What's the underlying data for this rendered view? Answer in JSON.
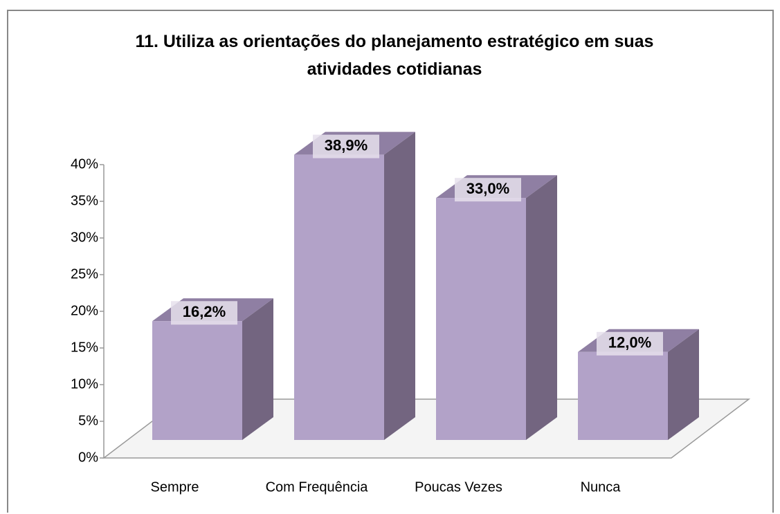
{
  "chart_data": {
    "type": "bar3d",
    "title": "11. Utiliza as orientações do planejamento estratégico em suas atividades cotidianas",
    "categories": [
      "Sempre",
      "Com Frequência",
      "Poucas Vezes",
      "Nunca"
    ],
    "values": [
      16.2,
      38.9,
      33.0,
      12.0
    ],
    "value_labels": [
      "16,2%",
      "38,9%",
      "33,0%",
      "12,0%"
    ],
    "color": "#b2a2c8",
    "ylim": [
      0,
      40
    ],
    "yticks": [
      {
        "value": 0,
        "label": "0%"
      },
      {
        "value": 5,
        "label": "5%"
      },
      {
        "value": 10,
        "label": "10%"
      },
      {
        "value": 15,
        "label": "15%"
      },
      {
        "value": 20,
        "label": "20%"
      },
      {
        "value": 25,
        "label": "25%"
      },
      {
        "value": 30,
        "label": "30%"
      },
      {
        "value": 35,
        "label": "35%"
      },
      {
        "value": 40,
        "label": "40%"
      }
    ]
  }
}
